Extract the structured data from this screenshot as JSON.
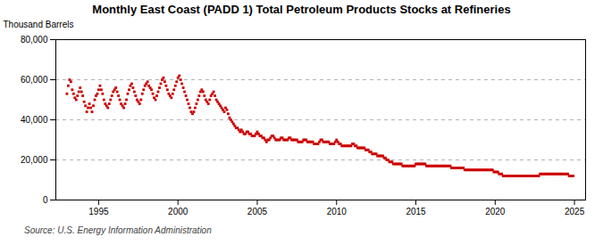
{
  "chart_data": {
    "type": "scatter",
    "title": "Monthly East Coast (PADD 1) Total Petroleum Products Stocks at Refineries",
    "ylabel": "Thousand Barrels",
    "source": "Source: U.S. Energy Information Administration",
    "color": "#cc0000",
    "marker": "square",
    "grid": "y",
    "xlim": [
      1992.3,
      2025.7
    ],
    "xticks": [
      1995,
      2000,
      2005,
      2010,
      2015,
      2020,
      2025
    ],
    "ylim": [
      0,
      80000
    ],
    "yticks": [
      0,
      {
        "value": 20000,
        "label": "20,000"
      },
      {
        "value": 40000,
        "label": "40,000"
      },
      {
        "value": 60000,
        "label": "60,000"
      },
      {
        "value": 80000,
        "label": "80,000"
      }
    ],
    "x": [
      1993.0,
      1993.083,
      1993.167,
      1993.25,
      1993.333,
      1993.417,
      1993.5,
      1993.583,
      1993.667,
      1993.75,
      1993.833,
      1993.917,
      1994.0,
      1994.083,
      1994.167,
      1994.25,
      1994.333,
      1994.417,
      1994.5,
      1994.583,
      1994.667,
      1994.75,
      1994.833,
      1994.917,
      1995.0,
      1995.083,
      1995.167,
      1995.25,
      1995.333,
      1995.417,
      1995.5,
      1995.583,
      1995.667,
      1995.75,
      1995.833,
      1995.917,
      1996.0,
      1996.083,
      1996.167,
      1996.25,
      1996.333,
      1996.417,
      1996.5,
      1996.583,
      1996.667,
      1996.75,
      1996.833,
      1996.917,
      1997.0,
      1997.083,
      1997.167,
      1997.25,
      1997.333,
      1997.417,
      1997.5,
      1997.583,
      1997.667,
      1997.75,
      1997.833,
      1997.917,
      1998.0,
      1998.083,
      1998.167,
      1998.25,
      1998.333,
      1998.417,
      1998.5,
      1998.583,
      1998.667,
      1998.75,
      1998.833,
      1998.917,
      1999.0,
      1999.083,
      1999.167,
      1999.25,
      1999.333,
      1999.417,
      1999.5,
      1999.583,
      1999.667,
      1999.75,
      1999.833,
      1999.917,
      2000.0,
      2000.083,
      2000.167,
      2000.25,
      2000.333,
      2000.417,
      2000.5,
      2000.583,
      2000.667,
      2000.75,
      2000.833,
      2000.917,
      2001.0,
      2001.083,
      2001.167,
      2001.25,
      2001.333,
      2001.417,
      2001.5,
      2001.583,
      2001.667,
      2001.75,
      2001.833,
      2001.917,
      2002.0,
      2002.083,
      2002.167,
      2002.25,
      2002.333,
      2002.417,
      2002.5,
      2002.583,
      2002.667,
      2002.75,
      2002.833,
      2002.917,
      2003.0,
      2003.083,
      2003.167,
      2003.25,
      2003.333,
      2003.417,
      2003.5,
      2003.583,
      2003.667,
      2003.75,
      2003.833,
      2003.917,
      2004.0,
      2004.083,
      2004.167,
      2004.25,
      2004.333,
      2004.417,
      2004.5,
      2004.583,
      2004.667,
      2004.75,
      2004.833,
      2004.917,
      2005.0,
      2005.083,
      2005.167,
      2005.25,
      2005.333,
      2005.417,
      2005.5,
      2005.583,
      2005.667,
      2005.75,
      2005.833,
      2005.917,
      2006.0,
      2006.083,
      2006.167,
      2006.25,
      2006.333,
      2006.417,
      2006.5,
      2006.583,
      2006.667,
      2006.75,
      2006.833,
      2006.917,
      2007.0,
      2007.083,
      2007.167,
      2007.25,
      2007.333,
      2007.417,
      2007.5,
      2007.583,
      2007.667,
      2007.75,
      2007.833,
      2007.917,
      2008.0,
      2008.083,
      2008.167,
      2008.25,
      2008.333,
      2008.417,
      2008.5,
      2008.583,
      2008.667,
      2008.75,
      2008.833,
      2008.917,
      2009.0,
      2009.083,
      2009.167,
      2009.25,
      2009.333,
      2009.417,
      2009.5,
      2009.583,
      2009.667,
      2009.75,
      2009.833,
      2009.917,
      2010.0,
      2010.083,
      2010.167,
      2010.25,
      2010.333,
      2010.417,
      2010.5,
      2010.583,
      2010.667,
      2010.75,
      2010.833,
      2010.917,
      2011.0,
      2011.083,
      2011.167,
      2011.25,
      2011.333,
      2011.417,
      2011.5,
      2011.583,
      2011.667,
      2011.75,
      2011.833,
      2011.917,
      2012.0,
      2012.083,
      2012.167,
      2012.25,
      2012.333,
      2012.417,
      2012.5,
      2012.583,
      2012.667,
      2012.75,
      2012.833,
      2012.917,
      2013.0,
      2013.083,
      2013.167,
      2013.25,
      2013.333,
      2013.417,
      2013.5,
      2013.583,
      2013.667,
      2013.75,
      2013.833,
      2013.917,
      2014.0,
      2014.083,
      2014.167,
      2014.25,
      2014.333,
      2014.417,
      2014.5,
      2014.583,
      2014.667,
      2014.75,
      2014.833,
      2014.917,
      2015.0,
      2015.083,
      2015.167,
      2015.25,
      2015.333,
      2015.417,
      2015.5,
      2015.583,
      2015.667,
      2015.75,
      2015.833,
      2015.917,
      2016.0,
      2016.083,
      2016.167,
      2016.25,
      2016.333,
      2016.417,
      2016.5,
      2016.583,
      2016.667,
      2016.75,
      2016.833,
      2016.917,
      2017.0,
      2017.083,
      2017.167,
      2017.25,
      2017.333,
      2017.417,
      2017.5,
      2017.583,
      2017.667,
      2017.75,
      2017.833,
      2017.917,
      2018.0,
      2018.083,
      2018.167,
      2018.25,
      2018.333,
      2018.417,
      2018.5,
      2018.583,
      2018.667,
      2018.75,
      2018.833,
      2018.917,
      2019.0,
      2019.083,
      2019.167,
      2019.25,
      2019.333,
      2019.417,
      2019.5,
      2019.583,
      2019.667,
      2019.75,
      2019.833,
      2019.917,
      2020.0,
      2020.083,
      2020.167,
      2020.25,
      2020.333,
      2020.417,
      2020.5,
      2020.583,
      2020.667,
      2020.75,
      2020.833,
      2020.917,
      2021.0,
      2021.083,
      2021.167,
      2021.25,
      2021.333,
      2021.417,
      2021.5,
      2021.583,
      2021.667,
      2021.75,
      2021.833,
      2021.917,
      2022.0,
      2022.083,
      2022.167,
      2022.25,
      2022.333,
      2022.417,
      2022.5,
      2022.583,
      2022.667,
      2022.75,
      2022.833,
      2022.917,
      2023.0,
      2023.083,
      2023.167,
      2023.25,
      2023.333,
      2023.417,
      2023.5,
      2023.583,
      2023.667,
      2023.75,
      2023.833,
      2023.917,
      2024.0,
      2024.083,
      2024.167,
      2024.25,
      2024.333,
      2024.417,
      2024.5,
      2024.583,
      2024.667,
      2024.75,
      2024.833,
      2024.917
    ],
    "values": [
      53000,
      57000,
      60000,
      59000,
      55000,
      53000,
      51000,
      50000,
      52000,
      54000,
      56000,
      54000,
      52000,
      49000,
      47000,
      44000,
      46000,
      48000,
      46000,
      44000,
      47000,
      50000,
      52000,
      53000,
      55000,
      57000,
      55000,
      53000,
      50000,
      48000,
      47000,
      46000,
      48000,
      50000,
      52000,
      54000,
      55000,
      56000,
      54000,
      52000,
      50000,
      48000,
      47000,
      46000,
      48000,
      50000,
      53000,
      55000,
      57000,
      58000,
      56000,
      54000,
      52000,
      50000,
      49000,
      48000,
      50000,
      53000,
      55000,
      57000,
      58000,
      59000,
      57000,
      56000,
      55000,
      53000,
      51000,
      50000,
      52000,
      54000,
      56000,
      58000,
      60000,
      61000,
      59000,
      57000,
      55000,
      53000,
      52000,
      51000,
      53000,
      55000,
      57000,
      59000,
      61000,
      62000,
      60000,
      58000,
      56000,
      54000,
      52000,
      50000,
      48000,
      46000,
      44000,
      43000,
      44000,
      46000,
      48000,
      50000,
      52000,
      54000,
      55000,
      54000,
      52000,
      50000,
      49000,
      48000,
      50000,
      52000,
      53000,
      54000,
      52000,
      50000,
      49000,
      48000,
      47000,
      46000,
      45000,
      44000,
      46000,
      45000,
      43000,
      41000,
      40000,
      39000,
      38000,
      37000,
      36000,
      36000,
      35000,
      34000,
      35000,
      34000,
      33000,
      33000,
      34000,
      34000,
      33000,
      33000,
      32000,
      32000,
      32000,
      33000,
      34000,
      33000,
      32000,
      32000,
      31000,
      31000,
      30000,
      29000,
      30000,
      30000,
      31000,
      32000,
      32000,
      31000,
      30000,
      30000,
      30000,
      30000,
      31000,
      31000,
      30000,
      30000,
      30000,
      30000,
      31000,
      31000,
      30000,
      30000,
      30000,
      30000,
      30000,
      29000,
      29000,
      29000,
      29000,
      30000,
      30000,
      30000,
      29000,
      29000,
      29000,
      29000,
      29000,
      28000,
      28000,
      28000,
      28000,
      29000,
      30000,
      30000,
      29000,
      29000,
      29000,
      29000,
      29000,
      28000,
      28000,
      28000,
      28000,
      29000,
      30000,
      29000,
      28000,
      28000,
      27000,
      27000,
      27000,
      27000,
      27000,
      27000,
      27000,
      27000,
      28000,
      28000,
      27000,
      27000,
      26000,
      26000,
      26000,
      26000,
      26000,
      26000,
      25000,
      25000,
      25000,
      24000,
      24000,
      23000,
      23000,
      23000,
      23000,
      22000,
      22000,
      22000,
      22000,
      22000,
      21000,
      21000,
      20000,
      20000,
      19000,
      19000,
      19000,
      18000,
      18000,
      18000,
      18000,
      18000,
      18000,
      18000,
      17000,
      17000,
      17000,
      17000,
      17000,
      17000,
      17000,
      17000,
      17000,
      17000,
      18000,
      18000,
      18000,
      18000,
      18000,
      18000,
      18000,
      18000,
      17000,
      17000,
      17000,
      17000,
      17000,
      17000,
      17000,
      17000,
      17000,
      17000,
      17000,
      17000,
      17000,
      17000,
      17000,
      17000,
      17000,
      17000,
      17000,
      16000,
      16000,
      16000,
      16000,
      16000,
      16000,
      16000,
      16000,
      16000,
      16000,
      15000,
      15000,
      15000,
      15000,
      15000,
      15000,
      15000,
      15000,
      15000,
      15000,
      15000,
      15000,
      15000,
      15000,
      15000,
      15000,
      15000,
      15000,
      15000,
      15000,
      15000,
      15000,
      14000,
      14000,
      14000,
      14000,
      13000,
      13000,
      13000,
      12000,
      12000,
      12000,
      12000,
      12000,
      12000,
      12000,
      12000,
      12000,
      12000,
      12000,
      12000,
      12000,
      12000,
      12000,
      12000,
      12000,
      12000,
      12000,
      12000,
      12000,
      12000,
      12000,
      12000,
      12000,
      12000,
      12000,
      12000,
      13000,
      13000,
      13000,
      13000,
      13000,
      13000,
      13000,
      13000,
      13000,
      13000,
      13000,
      13000,
      13000,
      13000,
      13000,
      13000,
      13000,
      13000,
      13000,
      13000,
      13000,
      13000,
      12000,
      12000,
      12000,
      12000
    ]
  }
}
